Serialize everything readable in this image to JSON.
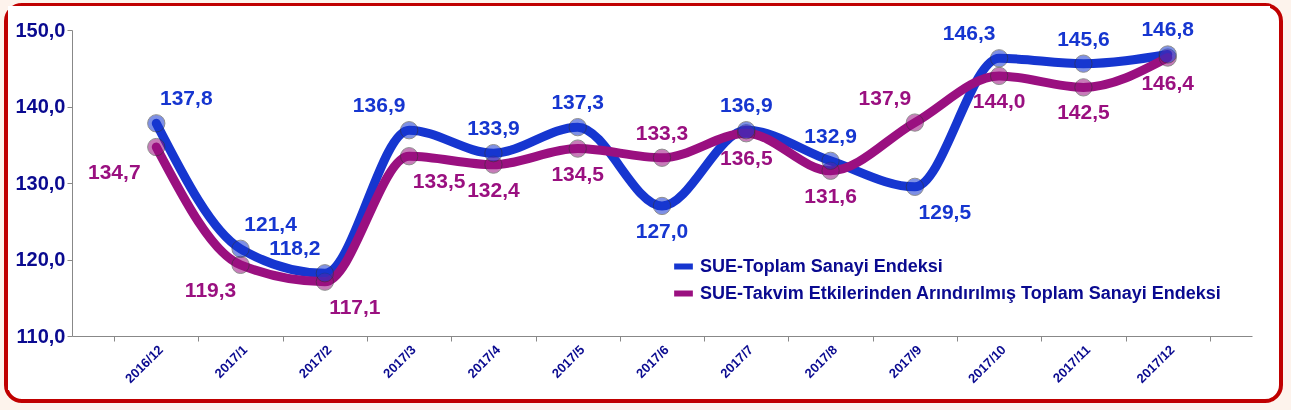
{
  "chart_data": {
    "type": "line",
    "categories": [
      "2016/12",
      "2017/1",
      "2017/2",
      "2017/3",
      "2017/4",
      "2017/5",
      "2017/6",
      "2017/7",
      "2017/8",
      "2017/9",
      "2017/10",
      "2017/11",
      "2017/12"
    ],
    "series": [
      {
        "name": "SUE-Toplam Sanayi Endeksi",
        "color": "#1636d0",
        "values": [
          137.8,
          121.4,
          118.2,
          136.9,
          133.9,
          137.3,
          127.0,
          136.9,
          132.9,
          129.5,
          146.3,
          145.6,
          146.8
        ],
        "value_labels": [
          "137,8",
          "121,4",
          "118,2",
          "136,9",
          "133,9",
          "137,3",
          "127,0",
          "136,9",
          "132,9",
          "129,5",
          "146,3",
          "145,6",
          "146,8"
        ]
      },
      {
        "name": "SUE-Takvim Etkilerinden Arındırılmış Toplam Sanayi Endeksi",
        "color": "#9a1080",
        "values": [
          134.7,
          119.3,
          117.1,
          133.5,
          132.4,
          134.5,
          133.3,
          136.5,
          131.6,
          137.9,
          144.0,
          142.5,
          146.4
        ],
        "value_labels": [
          "134,7",
          "119,3",
          "117,1",
          "133,5",
          "132,4",
          "134,5",
          "133,3",
          "136,5",
          "131,6",
          "137,9",
          "144,0",
          "142,5",
          "146,4"
        ]
      }
    ],
    "ylim": [
      110,
      150
    ],
    "yticks": [
      {
        "value": 110,
        "label": "110,0"
      },
      {
        "value": 120,
        "label": "120,0"
      },
      {
        "value": 130,
        "label": "130,0"
      },
      {
        "value": 140,
        "label": "140,0"
      },
      {
        "value": 150,
        "label": "150,0"
      }
    ],
    "grid": false,
    "legend": "bottom right",
    "marker": "circle",
    "line_style": "solid"
  }
}
